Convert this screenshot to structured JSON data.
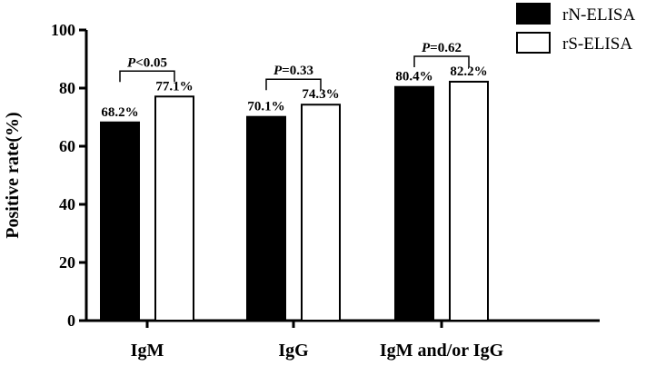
{
  "chart_data": {
    "type": "bar",
    "categories": [
      "IgM",
      "IgG",
      "IgM and/or IgG"
    ],
    "series": [
      {
        "name": "rN-ELISA",
        "values": [
          68.2,
          70.1,
          80.4
        ],
        "labels": [
          "68.2%",
          "70.1%",
          "80.4%"
        ],
        "color": "#000000"
      },
      {
        "name": "rS-ELISA",
        "values": [
          77.1,
          74.3,
          82.2
        ],
        "labels": [
          "77.1%",
          "74.3%",
          "82.2%"
        ],
        "color": "#ffffff"
      }
    ],
    "p_values": [
      {
        "italic": "P",
        "text": "<0.05"
      },
      {
        "italic": "P",
        "text": "=0.33"
      },
      {
        "italic": "P",
        "text": "=0.62"
      }
    ],
    "ylabel": "Positive rate(%)",
    "xlabel": "",
    "ylim": [
      0,
      100
    ],
    "yticks": [
      0,
      20,
      40,
      60,
      80,
      100
    ],
    "grid": false,
    "legend_position": "top-right"
  }
}
